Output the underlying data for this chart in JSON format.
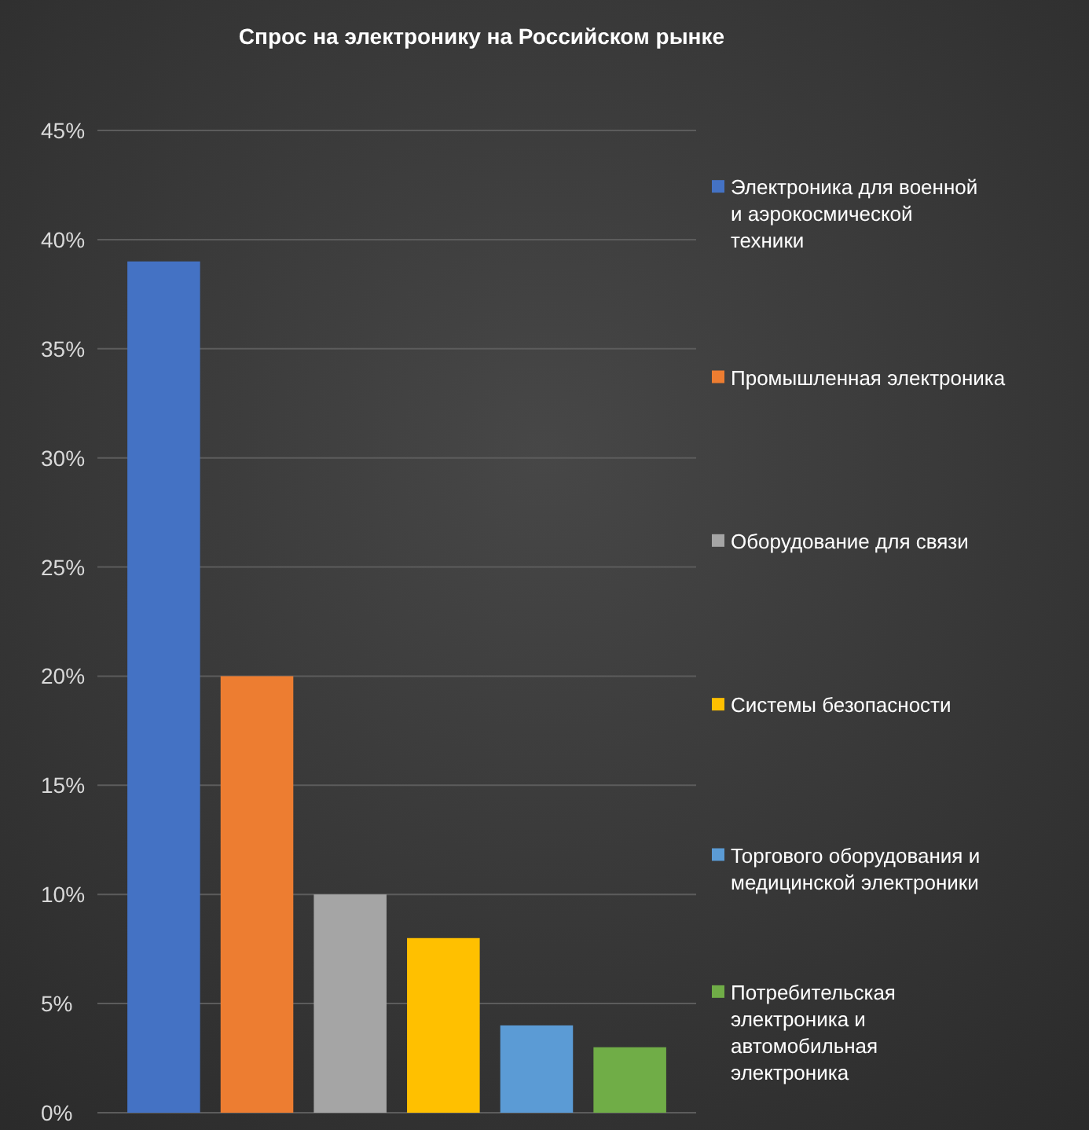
{
  "chart_data": {
    "type": "bar",
    "title": "Спрос на электронику на Российском рынке",
    "categories": [
      null
    ],
    "series": [
      {
        "name": "Электроника для военной и аэрокосмической техники",
        "color": "#4472c4",
        "values": [
          39
        ]
      },
      {
        "name": "Промышленная электроника",
        "color": "#ed7d31",
        "values": [
          20
        ]
      },
      {
        "name": "Оборудование для связи",
        "color": "#a5a5a5",
        "values": [
          10
        ]
      },
      {
        "name": "Системы безопасности",
        "color": "#ffc000",
        "values": [
          8
        ]
      },
      {
        "name": "Торгового оборудования и медицинской электроники",
        "color": "#5b9bd5",
        "values": [
          4
        ]
      },
      {
        "name": "Потребительская электроника и автомобильная электроника",
        "color": "#70ad47",
        "values": [
          3
        ]
      }
    ],
    "ylim": [
      0,
      45
    ],
    "yticks": [
      {
        "value": 0,
        "label": "0%"
      },
      {
        "value": 5,
        "label": "5%"
      },
      {
        "value": 10,
        "label": "10%"
      },
      {
        "value": 15,
        "label": "15%"
      },
      {
        "value": 20,
        "label": "20%"
      },
      {
        "value": 25,
        "label": "25%"
      },
      {
        "value": 30,
        "label": "30%"
      },
      {
        "value": 35,
        "label": "35%"
      },
      {
        "value": 40,
        "label": "40%"
      },
      {
        "value": 45,
        "label": "45%"
      }
    ],
    "grid": "y",
    "legend": "right"
  }
}
